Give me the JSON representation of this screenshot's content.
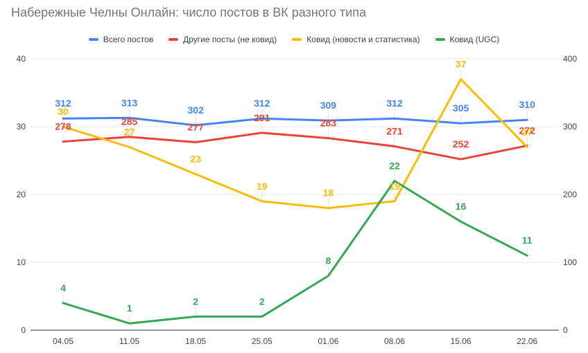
{
  "chart": {
    "title": "Набережные Челны Онлайн: число постов в ВК разного типа"
  },
  "chart_data": {
    "type": "line",
    "title": "Набережные Челны Онлайн: число постов в ВК разного типа",
    "categories": [
      "04.05",
      "11.05",
      "18.05",
      "25.05",
      "01.06",
      "08.06",
      "15.06",
      "22.06"
    ],
    "series": [
      {
        "name": "Всего постов",
        "color": "#4285F4",
        "axis": "right",
        "values": [
          312,
          313,
          302,
          312,
          309,
          312,
          305,
          310
        ]
      },
      {
        "name": "Другие посты (не ковид)",
        "color": "#EA4335",
        "axis": "right",
        "values": [
          278,
          285,
          277,
          291,
          283,
          271,
          252,
          272
        ]
      },
      {
        "name": "Ковид (новости и статистика)",
        "color": "#FBBC04",
        "axis": "left",
        "values": [
          30,
          27,
          23,
          19,
          18,
          19,
          37,
          27
        ]
      },
      {
        "name": "Ковид (UGC)",
        "color": "#34A853",
        "axis": "left",
        "values": [
          4,
          1,
          2,
          2,
          8,
          22,
          16,
          11
        ]
      }
    ],
    "left_axis": {
      "ticks": [
        0,
        10,
        20,
        30,
        40
      ],
      "max": 40
    },
    "right_axis": {
      "ticks": [
        0,
        100,
        200,
        300,
        400
      ],
      "max": 400
    },
    "grid": true,
    "data_labels": true,
    "legend_position": "top",
    "colors": {
      "title_text": "#757575",
      "legend_text": "#3c4043",
      "tick_text": "#424242",
      "gridline": "#e6e6e6",
      "axis_line": "#333333",
      "leader_line": "#e0e0e0",
      "background": "#ffffff"
    }
  }
}
